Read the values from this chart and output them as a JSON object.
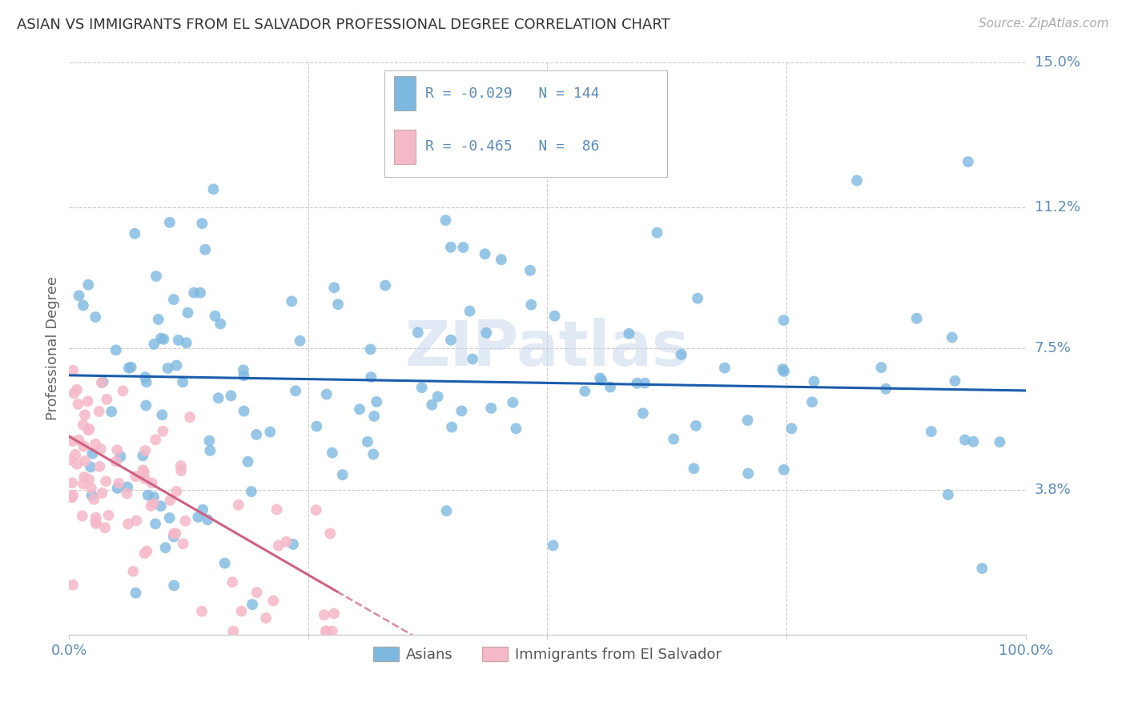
{
  "title": "ASIAN VS IMMIGRANTS FROM EL SALVADOR PROFESSIONAL DEGREE CORRELATION CHART",
  "source": "Source: ZipAtlas.com",
  "ylabel": "Professional Degree",
  "blue_color": "#7DB8E0",
  "pink_color": "#F5B8C8",
  "line_blue": "#1A5DAD",
  "line_pink": "#D06080",
  "axis_color": "#5B8DB8",
  "watermark": "ZIPatlas",
  "legend_label1": "Asians",
  "legend_label2": "Immigrants from El Salvador"
}
